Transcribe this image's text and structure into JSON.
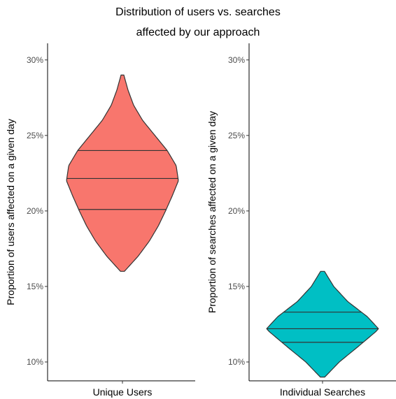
{
  "chart_data": {
    "type": "violin",
    "title_lines": [
      "Distribution of users vs. searches",
      "affected by our approach"
    ],
    "yticks": [
      0.1,
      0.15,
      0.2,
      0.25,
      0.3
    ],
    "ytick_labels": [
      "10%",
      "15%",
      "20%",
      "25%",
      "30%"
    ],
    "panels": [
      {
        "name": "users",
        "category": "Unique Users",
        "ylabel": "Proportion of users affected on a given day",
        "color": "#F8766D",
        "ylim": [
          0.0875,
          0.311
        ],
        "quantiles": [
          0.201,
          0.2215,
          0.24
        ],
        "profile": [
          [
            0.16,
            0.035
          ],
          [
            0.17,
            0.28
          ],
          [
            0.18,
            0.48
          ],
          [
            0.19,
            0.64
          ],
          [
            0.2,
            0.77
          ],
          [
            0.21,
            0.89
          ],
          [
            0.22,
            1.0
          ],
          [
            0.23,
            0.96
          ],
          [
            0.24,
            0.8
          ],
          [
            0.25,
            0.58
          ],
          [
            0.26,
            0.36
          ],
          [
            0.27,
            0.2
          ],
          [
            0.28,
            0.1
          ],
          [
            0.29,
            0.025
          ]
        ]
      },
      {
        "name": "searches",
        "category": "Individual Searches",
        "ylabel": "Proportion of searches affected on a given day",
        "color": "#00BFC4",
        "ylim": [
          0.0875,
          0.311
        ],
        "quantiles": [
          0.113,
          0.122,
          0.133
        ],
        "profile": [
          [
            0.09,
            0.04
          ],
          [
            0.1,
            0.3
          ],
          [
            0.11,
            0.63
          ],
          [
            0.12,
            0.95
          ],
          [
            0.122,
            1.0
          ],
          [
            0.13,
            0.8
          ],
          [
            0.14,
            0.45
          ],
          [
            0.15,
            0.2
          ],
          [
            0.16,
            0.035
          ]
        ]
      }
    ]
  }
}
